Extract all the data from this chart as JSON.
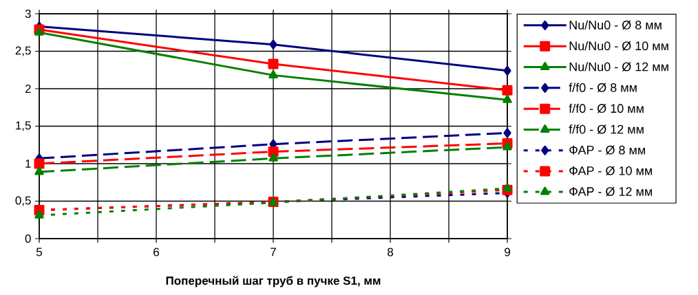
{
  "chart_data": {
    "type": "line",
    "xlabel": "Поперечный шаг труб в пучке S1, мм",
    "x": [
      5,
      7,
      9
    ],
    "xlim": [
      5,
      9
    ],
    "xticks": [
      5,
      {
        "value": 5.5,
        "label": null
      },
      6,
      {
        "value": 6.5,
        "label": null
      },
      7,
      {
        "value": 7.5,
        "label": null
      },
      8,
      {
        "value": 8.5,
        "label": null
      },
      9
    ],
    "ylim": [
      0,
      3
    ],
    "yticks": [
      0,
      {
        "value": 0.5,
        "label": "0,5"
      },
      1,
      {
        "value": 1.5,
        "label": "1,5"
      },
      2,
      {
        "value": 2.5,
        "label": "2,5"
      },
      3
    ],
    "grid": true,
    "legend": "right",
    "series": [
      {
        "name": "Nu/Nu0 - Ø 8 мм",
        "color": "#000080",
        "marker": "diamond",
        "line_style": "solid",
        "values": [
          2.83,
          2.59,
          2.24
        ]
      },
      {
        "name": "Nu/Nu0 - Ø 10 мм",
        "color": "#ff0000",
        "marker": "square",
        "line_style": "solid",
        "values": [
          2.79,
          2.33,
          1.98
        ]
      },
      {
        "name": "Nu/Nu0 - Ø 12 мм",
        "color": "#008000",
        "marker": "triangle",
        "line_style": "solid",
        "values": [
          2.75,
          2.18,
          1.85
        ]
      },
      {
        "name": "f/f0 - Ø 8 мм",
        "color": "#000080",
        "marker": "diamond",
        "line_style": "dashed",
        "values": [
          1.07,
          1.26,
          1.41
        ]
      },
      {
        "name": "f/f0 - Ø 10 мм",
        "color": "#ff0000",
        "marker": "square",
        "line_style": "dashed",
        "values": [
          1.0,
          1.16,
          1.27
        ]
      },
      {
        "name": "f/f0 - Ø 12 мм",
        "color": "#008000",
        "marker": "triangle",
        "line_style": "dashed",
        "values": [
          0.89,
          1.07,
          1.22
        ]
      },
      {
        "name": "ФАР - Ø 8 мм",
        "color": "#000080",
        "marker": "diamond",
        "line_style": "dotted",
        "values": [
          0.38,
          0.49,
          0.61
        ]
      },
      {
        "name": "ФАР - Ø 10 мм",
        "color": "#ff0000",
        "marker": "square",
        "line_style": "dotted",
        "values": [
          0.38,
          0.49,
          0.65
        ]
      },
      {
        "name": "ФАР - Ø 12 мм",
        "color": "#008000",
        "marker": "triangle",
        "line_style": "dotted",
        "values": [
          0.31,
          0.48,
          0.67
        ]
      }
    ]
  }
}
